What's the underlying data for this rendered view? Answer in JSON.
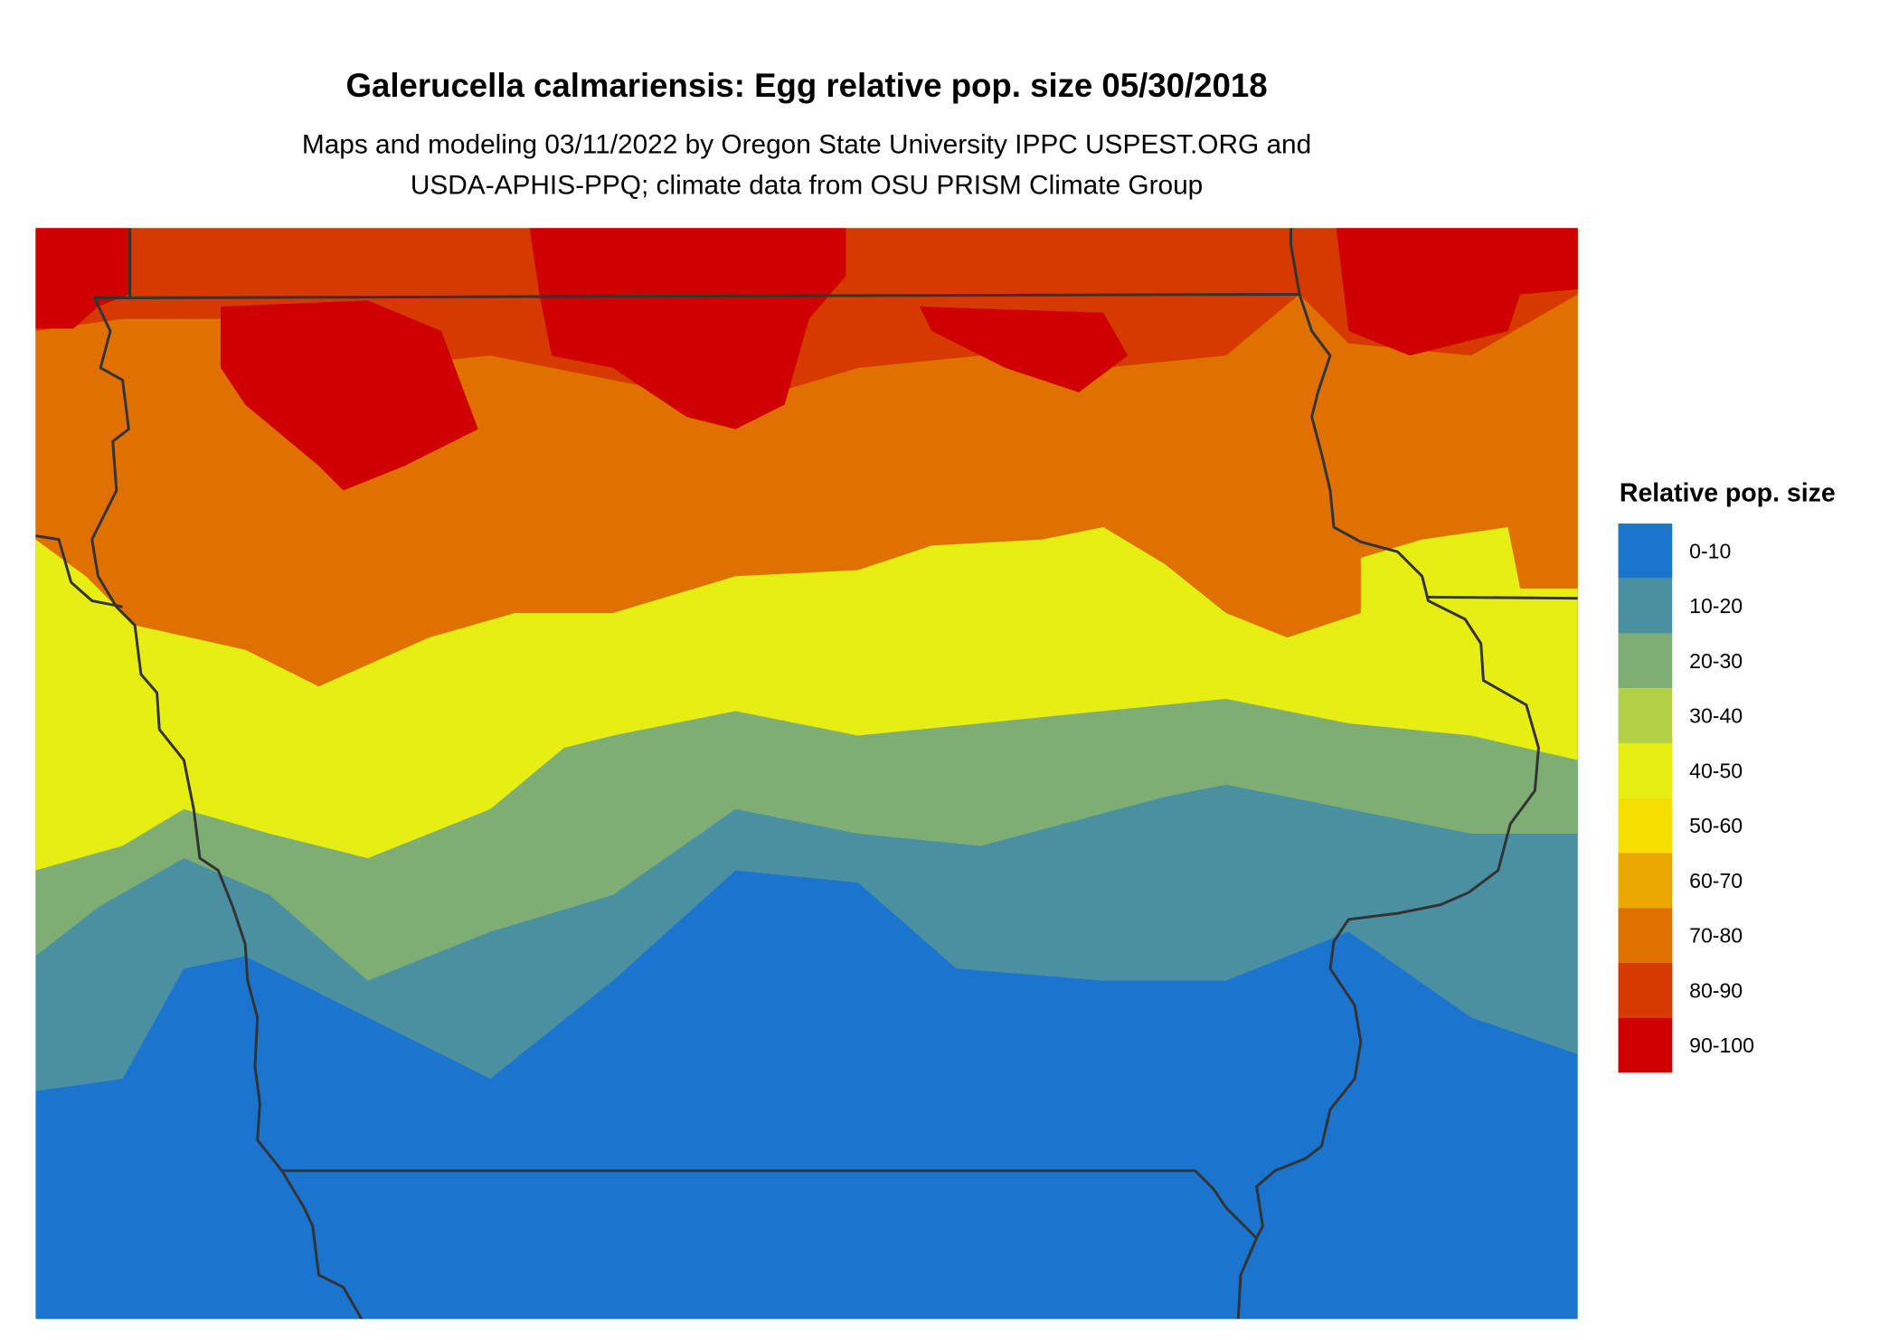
{
  "title": "Galerucella calmariensis: Egg relative pop. size 05/30/2018",
  "subtitle": [
    "Maps and modeling 03/11/2022 by Oregon State University IPPC USPEST.ORG and",
    "USDA-APHIS-PPQ; climate data from OSU PRISM Climate Group"
  ],
  "legend": {
    "title": "Relative pop. size",
    "items": [
      {
        "label": "0-10",
        "color": "#1b75cf"
      },
      {
        "label": "10-20",
        "color": "#4a90a0"
      },
      {
        "label": "20-30",
        "color": "#7fae74"
      },
      {
        "label": "30-40",
        "color": "#b4d044"
      },
      {
        "label": "40-50",
        "color": "#e6ee14"
      },
      {
        "label": "50-60",
        "color": "#f5de00"
      },
      {
        "label": "60-70",
        "color": "#eba800"
      },
      {
        "label": "70-80",
        "color": "#e07000"
      },
      {
        "label": "80-90",
        "color": "#d63a00"
      },
      {
        "label": "90-100",
        "color": "#cf0000"
      }
    ]
  }
}
